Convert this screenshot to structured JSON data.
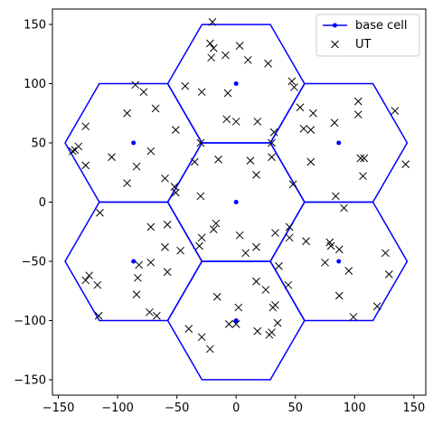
{
  "chart_data": {
    "type": "scatter",
    "title": "",
    "xlabel": "",
    "ylabel": "",
    "xlim": [
      -155,
      160
    ],
    "ylim": [
      -163,
      163
    ],
    "xticks": [
      -150,
      -100,
      -50,
      0,
      50,
      100,
      150
    ],
    "yticks": [
      -150,
      -100,
      -50,
      0,
      50,
      100,
      150
    ],
    "grid": false,
    "legend_position": "top-right",
    "hex_radius": 57.7,
    "series": [
      {
        "name": "base cell",
        "style": "line+marker",
        "color": "#0000ff",
        "centers": [
          [
            0,
            0
          ],
          [
            0,
            100
          ],
          [
            86.6,
            50
          ],
          [
            86.6,
            -50
          ],
          [
            0,
            -100
          ],
          [
            -86.6,
            -50
          ],
          [
            -86.6,
            50
          ]
        ]
      },
      {
        "name": "UT",
        "style": "x-marker",
        "color": "#000000",
        "points": [
          [
            -20,
            152
          ],
          [
            -22,
            134
          ],
          [
            -19,
            130
          ],
          [
            -21,
            122
          ],
          [
            -43,
            98
          ],
          [
            -9,
            124
          ],
          [
            3,
            132
          ],
          [
            10,
            120
          ],
          [
            27,
            117
          ],
          [
            49,
            97
          ],
          [
            47,
            102
          ],
          [
            -7,
            92
          ],
          [
            -29,
            93
          ],
          [
            -92,
            75
          ],
          [
            -85,
            99
          ],
          [
            -78,
            93
          ],
          [
            -68,
            79
          ],
          [
            -51,
            61
          ],
          [
            -136,
            44
          ],
          [
            -133,
            47
          ],
          [
            -127,
            64
          ],
          [
            -105,
            38
          ],
          [
            -72,
            43
          ],
          [
            -84,
            30
          ],
          [
            -127,
            31
          ],
          [
            -138,
            43
          ],
          [
            -92,
            16
          ],
          [
            -60,
            20
          ],
          [
            -52,
            13
          ],
          [
            -35,
            34
          ],
          [
            -8,
            70
          ],
          [
            0,
            68
          ],
          [
            18,
            68
          ],
          [
            32,
            59
          ],
          [
            -30,
            50
          ],
          [
            -15,
            36
          ],
          [
            30,
            50
          ],
          [
            12,
            35
          ],
          [
            30,
            38
          ],
          [
            17,
            23
          ],
          [
            48,
            15
          ],
          [
            -30,
            5
          ],
          [
            -51,
            8
          ],
          [
            54,
            80
          ],
          [
            57,
            62
          ],
          [
            63,
            61
          ],
          [
            83,
            67
          ],
          [
            65,
            75
          ],
          [
            103,
            85
          ],
          [
            103,
            74
          ],
          [
            134,
            77
          ],
          [
            105,
            37
          ],
          [
            108,
            37
          ],
          [
            143,
            32
          ],
          [
            84,
            5
          ],
          [
            91,
            -5
          ],
          [
            107,
            22
          ],
          [
            63,
            34
          ],
          [
            -115,
            -9
          ],
          [
            -58,
            -19
          ],
          [
            -72,
            -21
          ],
          [
            -60,
            -38
          ],
          [
            -47,
            -41
          ],
          [
            -72,
            -51
          ],
          [
            -83,
            -64
          ],
          [
            -82,
            -53
          ],
          [
            -124,
            -62
          ],
          [
            -127,
            -66
          ],
          [
            -117,
            -70
          ],
          [
            -84,
            -78
          ],
          [
            -58,
            -59
          ],
          [
            -73,
            -93
          ],
          [
            -67,
            -96
          ],
          [
            -116,
            -96
          ],
          [
            -19,
            -23
          ],
          [
            -29,
            -30
          ],
          [
            -31,
            -37
          ],
          [
            3,
            -28
          ],
          [
            8,
            -43
          ],
          [
            17,
            -38
          ],
          [
            33,
            -26
          ],
          [
            45,
            -30
          ],
          [
            45,
            -21
          ],
          [
            36,
            -54
          ],
          [
            -17,
            -18
          ],
          [
            59,
            -33
          ],
          [
            79,
            -34
          ],
          [
            80,
            -37
          ],
          [
            87,
            -40
          ],
          [
            95,
            -58
          ],
          [
            75,
            -51
          ],
          [
            126,
            -43
          ],
          [
            129,
            -61
          ],
          [
            119,
            -88
          ],
          [
            87,
            -79
          ],
          [
            99,
            -97
          ],
          [
            44,
            -70
          ],
          [
            -16,
            -80
          ],
          [
            17,
            -67
          ],
          [
            25,
            -74
          ],
          [
            31,
            -89
          ],
          [
            33,
            -87
          ],
          [
            30,
            -110
          ],
          [
            28,
            -112
          ],
          [
            35,
            -102
          ],
          [
            2,
            -89
          ],
          [
            -6,
            -103
          ],
          [
            0,
            -103
          ],
          [
            18,
            -109
          ],
          [
            -40,
            -107
          ],
          [
            -29,
            -114
          ],
          [
            -22,
            -124
          ]
        ]
      }
    ]
  }
}
